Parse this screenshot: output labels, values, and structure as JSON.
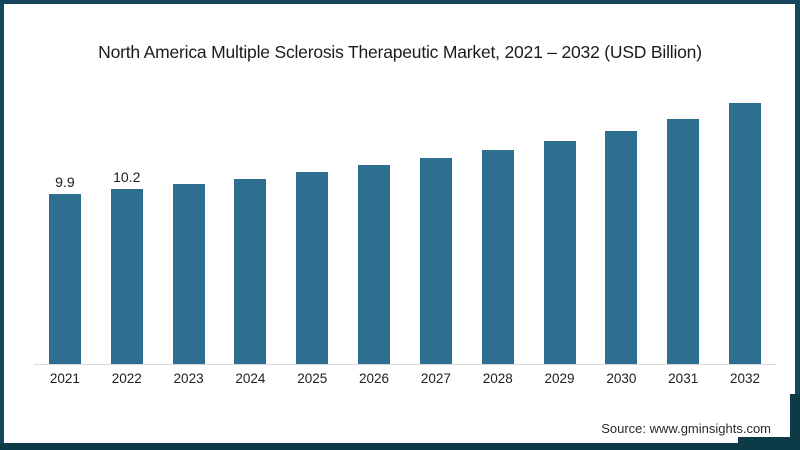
{
  "title": "North America Multiple Sclerosis Therapeutic Market, 2021 – 2032 (USD Billion)",
  "source": "Source: www.gminsights.com",
  "colors": {
    "bar": "#2e6f91",
    "frame": "#16455e",
    "frame_bottom": "#0d3a47",
    "axis_line": "#d9d9d9"
  },
  "chart_data": {
    "type": "bar",
    "title": "North America Multiple Sclerosis Therapeutic Market, 2021 – 2032 (USD Billion)",
    "unit": "USD Billion",
    "categories": [
      "2021",
      "2022",
      "2023",
      "2024",
      "2025",
      "2026",
      "2027",
      "2028",
      "2029",
      "2030",
      "2031",
      "2032"
    ],
    "values": [
      9.9,
      10.2,
      10.5,
      10.8,
      11.2,
      11.6,
      12.0,
      12.5,
      13.0,
      13.6,
      14.3,
      15.2
    ],
    "value_labels": [
      "9.9",
      "10.2",
      "",
      "",
      "",
      "",
      "",
      "",
      "",
      "",
      "",
      ""
    ],
    "xlabel": "",
    "ylabel": "",
    "ylim": [
      0,
      17.5
    ],
    "grid": false,
    "legend_position": "none",
    "bar_color": "#2e6f91"
  }
}
